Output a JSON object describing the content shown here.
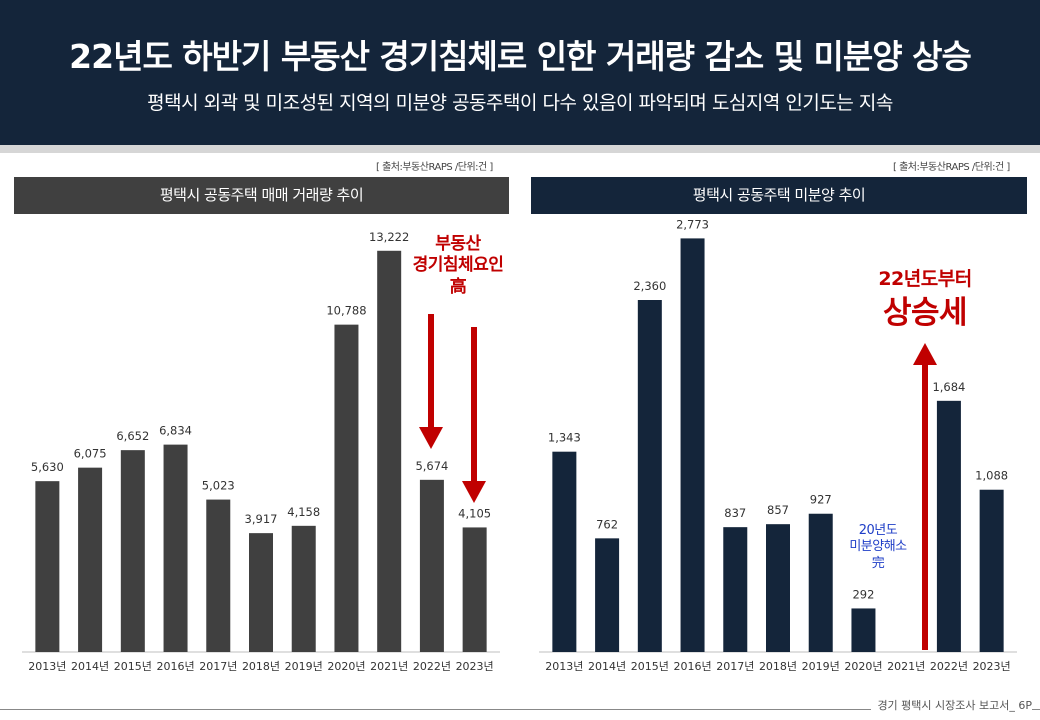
{
  "header": {
    "title": "22년도 하반기 부동산 경기침체로 인한 거래량 감소 및 미분양 상승",
    "subtitle": "평택시 외곽 및 미조성된 지역의 미분양 공동주택이 다수 있음이 파악되며 도심지역 인기도는 지속"
  },
  "footer": {
    "text": "경기 평택시 시장조사 보고서_ 6P"
  },
  "colors": {
    "header_bg": "#14253a",
    "left_bar": "#404040",
    "right_bar": "#14253a",
    "annotation_red": "#c00000",
    "annotation_blue": "#1f3ec7"
  },
  "chart_data": [
    {
      "type": "bar",
      "title": "평택시 공동주택 매매 거래량 추이",
      "source": "[ 출처:부동산RAPS /단위:건 ]",
      "categories": [
        "2013년",
        "2014년",
        "2015년",
        "2016년",
        "2017년",
        "2018년",
        "2019년",
        "2020년",
        "2021년",
        "2022년",
        "2023년"
      ],
      "values": [
        5630,
        6075,
        6652,
        6834,
        5023,
        3917,
        4158,
        10788,
        13222,
        5674,
        4105
      ],
      "data_labels": [
        "5,630",
        "6,075",
        "6,652",
        "6,834",
        "5,023",
        "3,917",
        "4,158",
        "10,788",
        "13,222",
        "5,674",
        "4,105"
      ],
      "ylim": [
        0,
        14500
      ],
      "grid": false,
      "annotations": [
        {
          "lines": [
            "부동산",
            "경기침체요인",
            "高"
          ],
          "color": "#c00000",
          "arrow": "down",
          "arrows": [
            "2022년",
            "2023년"
          ]
        }
      ]
    },
    {
      "type": "bar",
      "title": "평택시 공동주택 미분양 추이",
      "source": "[ 출처:부동산RAPS /단위:건 ]",
      "categories": [
        "2013년",
        "2014년",
        "2015년",
        "2016년",
        "2017년",
        "2018년",
        "2019년",
        "2020년",
        "2021년",
        "2022년",
        "2023년"
      ],
      "values": [
        1343,
        762,
        2360,
        2773,
        837,
        857,
        927,
        292,
        0,
        1684,
        1088
      ],
      "data_labels": [
        "1,343",
        "762",
        "2,360",
        "2,773",
        "837",
        "857",
        "927",
        "292",
        "",
        "1,684",
        "1,088"
      ],
      "ylim": [
        0,
        2950
      ],
      "grid": false,
      "annotations": [
        {
          "lines": [
            "20년도",
            "미분양해소",
            "完"
          ],
          "color": "#1f3ec7"
        },
        {
          "lines": [
            "22년도부터",
            "상승세"
          ],
          "color": "#c00000",
          "arrow": "up"
        }
      ]
    }
  ]
}
